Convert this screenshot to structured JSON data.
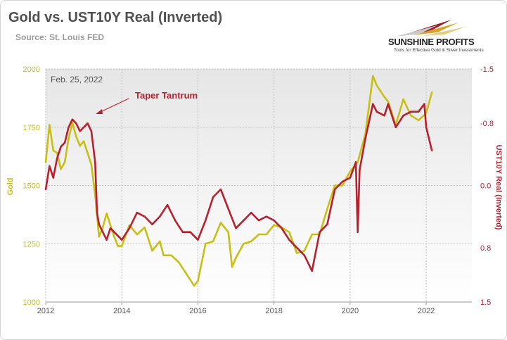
{
  "header": {
    "title": "Gold vs. UST10Y Real (Inverted)",
    "source": "Source: St. Louis FED"
  },
  "logo": {
    "name": "SUNSHINE PROFITS",
    "tagline": "Tools for Effective Gold & Silver Investments"
  },
  "colors": {
    "gold": "#c8be14",
    "real_yield": "#b8202e",
    "plot_bg_top": "#e6e6e6",
    "plot_bg_bottom": "#ffffff"
  },
  "chart_data": {
    "type": "line",
    "title": "Gold vs. UST10Y Real (Inverted)",
    "date_label": "Feb. 25, 2022",
    "annotation": "Taper Tantrum",
    "annotation_year": 2013.0,
    "xlabel": "",
    "x_ticks": [
      "2012",
      "2014",
      "2016",
      "2018",
      "2020",
      "2022"
    ],
    "xlim": [
      2012,
      2023.2
    ],
    "y_left": {
      "label": "Gold",
      "ticks": [
        "1000",
        "1250",
        "1500",
        "1750",
        "2000"
      ],
      "ylim": [
        1000,
        2000
      ]
    },
    "y_right": {
      "label": "UST10Y Real (Inverted)",
      "ticks": [
        "-1.5",
        "-0.8",
        "0.0",
        "0.8",
        "1.5"
      ],
      "ylim": [
        1.5,
        -1.5
      ],
      "inverted": true
    },
    "grid": true,
    "series": [
      {
        "name": "Gold",
        "axis": "left",
        "x": [
          2012.0,
          2012.1,
          2012.2,
          2012.3,
          2012.4,
          2012.5,
          2012.6,
          2012.7,
          2012.8,
          2012.9,
          2013.0,
          2013.1,
          2013.2,
          2013.3,
          2013.4,
          2013.5,
          2013.6,
          2013.7,
          2013.8,
          2013.9,
          2014.0,
          2014.2,
          2014.4,
          2014.6,
          2014.8,
          2015.0,
          2015.1,
          2015.3,
          2015.5,
          2015.7,
          2015.9,
          2016.0,
          2016.2,
          2016.4,
          2016.6,
          2016.8,
          2016.9,
          2017.0,
          2017.2,
          2017.4,
          2017.6,
          2017.8,
          2018.0,
          2018.2,
          2018.4,
          2018.6,
          2018.8,
          2019.0,
          2019.2,
          2019.4,
          2019.6,
          2019.8,
          2020.0,
          2020.2,
          2020.4,
          2020.6,
          2020.7,
          2020.9,
          2021.0,
          2021.2,
          2021.4,
          2021.6,
          2021.8,
          2022.0,
          2022.15
        ],
        "values": [
          1600,
          1760,
          1650,
          1640,
          1570,
          1600,
          1700,
          1770,
          1710,
          1670,
          1690,
          1640,
          1590,
          1460,
          1280,
          1320,
          1380,
          1330,
          1280,
          1240,
          1240,
          1330,
          1290,
          1320,
          1220,
          1260,
          1200,
          1200,
          1170,
          1120,
          1070,
          1090,
          1250,
          1260,
          1340,
          1300,
          1150,
          1190,
          1250,
          1260,
          1290,
          1290,
          1330,
          1320,
          1300,
          1210,
          1220,
          1290,
          1290,
          1400,
          1500,
          1500,
          1560,
          1600,
          1720,
          1970,
          1930,
          1880,
          1860,
          1760,
          1870,
          1800,
          1780,
          1810,
          1900
        ]
      },
      {
        "name": "UST10Y Real (Inverted)",
        "axis": "right",
        "x": [
          2012.0,
          2012.1,
          2012.2,
          2012.3,
          2012.4,
          2012.5,
          2012.6,
          2012.7,
          2012.8,
          2012.9,
          2013.0,
          2013.1,
          2013.2,
          2013.3,
          2013.35,
          2013.4,
          2013.5,
          2013.6,
          2013.7,
          2013.8,
          2014.0,
          2014.2,
          2014.4,
          2014.6,
          2014.8,
          2015.0,
          2015.2,
          2015.4,
          2015.6,
          2015.8,
          2016.0,
          2016.2,
          2016.4,
          2016.6,
          2016.8,
          2017.0,
          2017.2,
          2017.4,
          2017.6,
          2017.8,
          2018.0,
          2018.2,
          2018.4,
          2018.6,
          2018.8,
          2019.0,
          2019.2,
          2019.4,
          2019.6,
          2019.8,
          2020.0,
          2020.15,
          2020.2,
          2020.25,
          2020.4,
          2020.6,
          2020.7,
          2020.9,
          2021.0,
          2021.2,
          2021.4,
          2021.6,
          2021.8,
          2021.95,
          2022.0,
          2022.15
        ],
        "values": [
          0.05,
          -0.25,
          -0.1,
          -0.35,
          -0.5,
          -0.55,
          -0.75,
          -0.85,
          -0.8,
          -0.7,
          -0.75,
          -0.8,
          -0.7,
          -0.3,
          0.35,
          0.5,
          0.6,
          0.7,
          0.55,
          0.6,
          0.7,
          0.55,
          0.35,
          0.4,
          0.5,
          0.4,
          0.25,
          0.45,
          0.6,
          0.6,
          0.7,
          0.45,
          0.15,
          0.05,
          0.3,
          0.55,
          0.45,
          0.35,
          0.45,
          0.4,
          0.45,
          0.55,
          0.7,
          0.8,
          0.9,
          1.1,
          0.6,
          0.5,
          0.05,
          -0.05,
          -0.1,
          -0.3,
          0.6,
          -0.2,
          -0.6,
          -1.05,
          -0.95,
          -0.9,
          -1.05,
          -0.75,
          -0.9,
          -0.95,
          -0.95,
          -1.05,
          -0.75,
          -0.45
        ]
      }
    ]
  }
}
